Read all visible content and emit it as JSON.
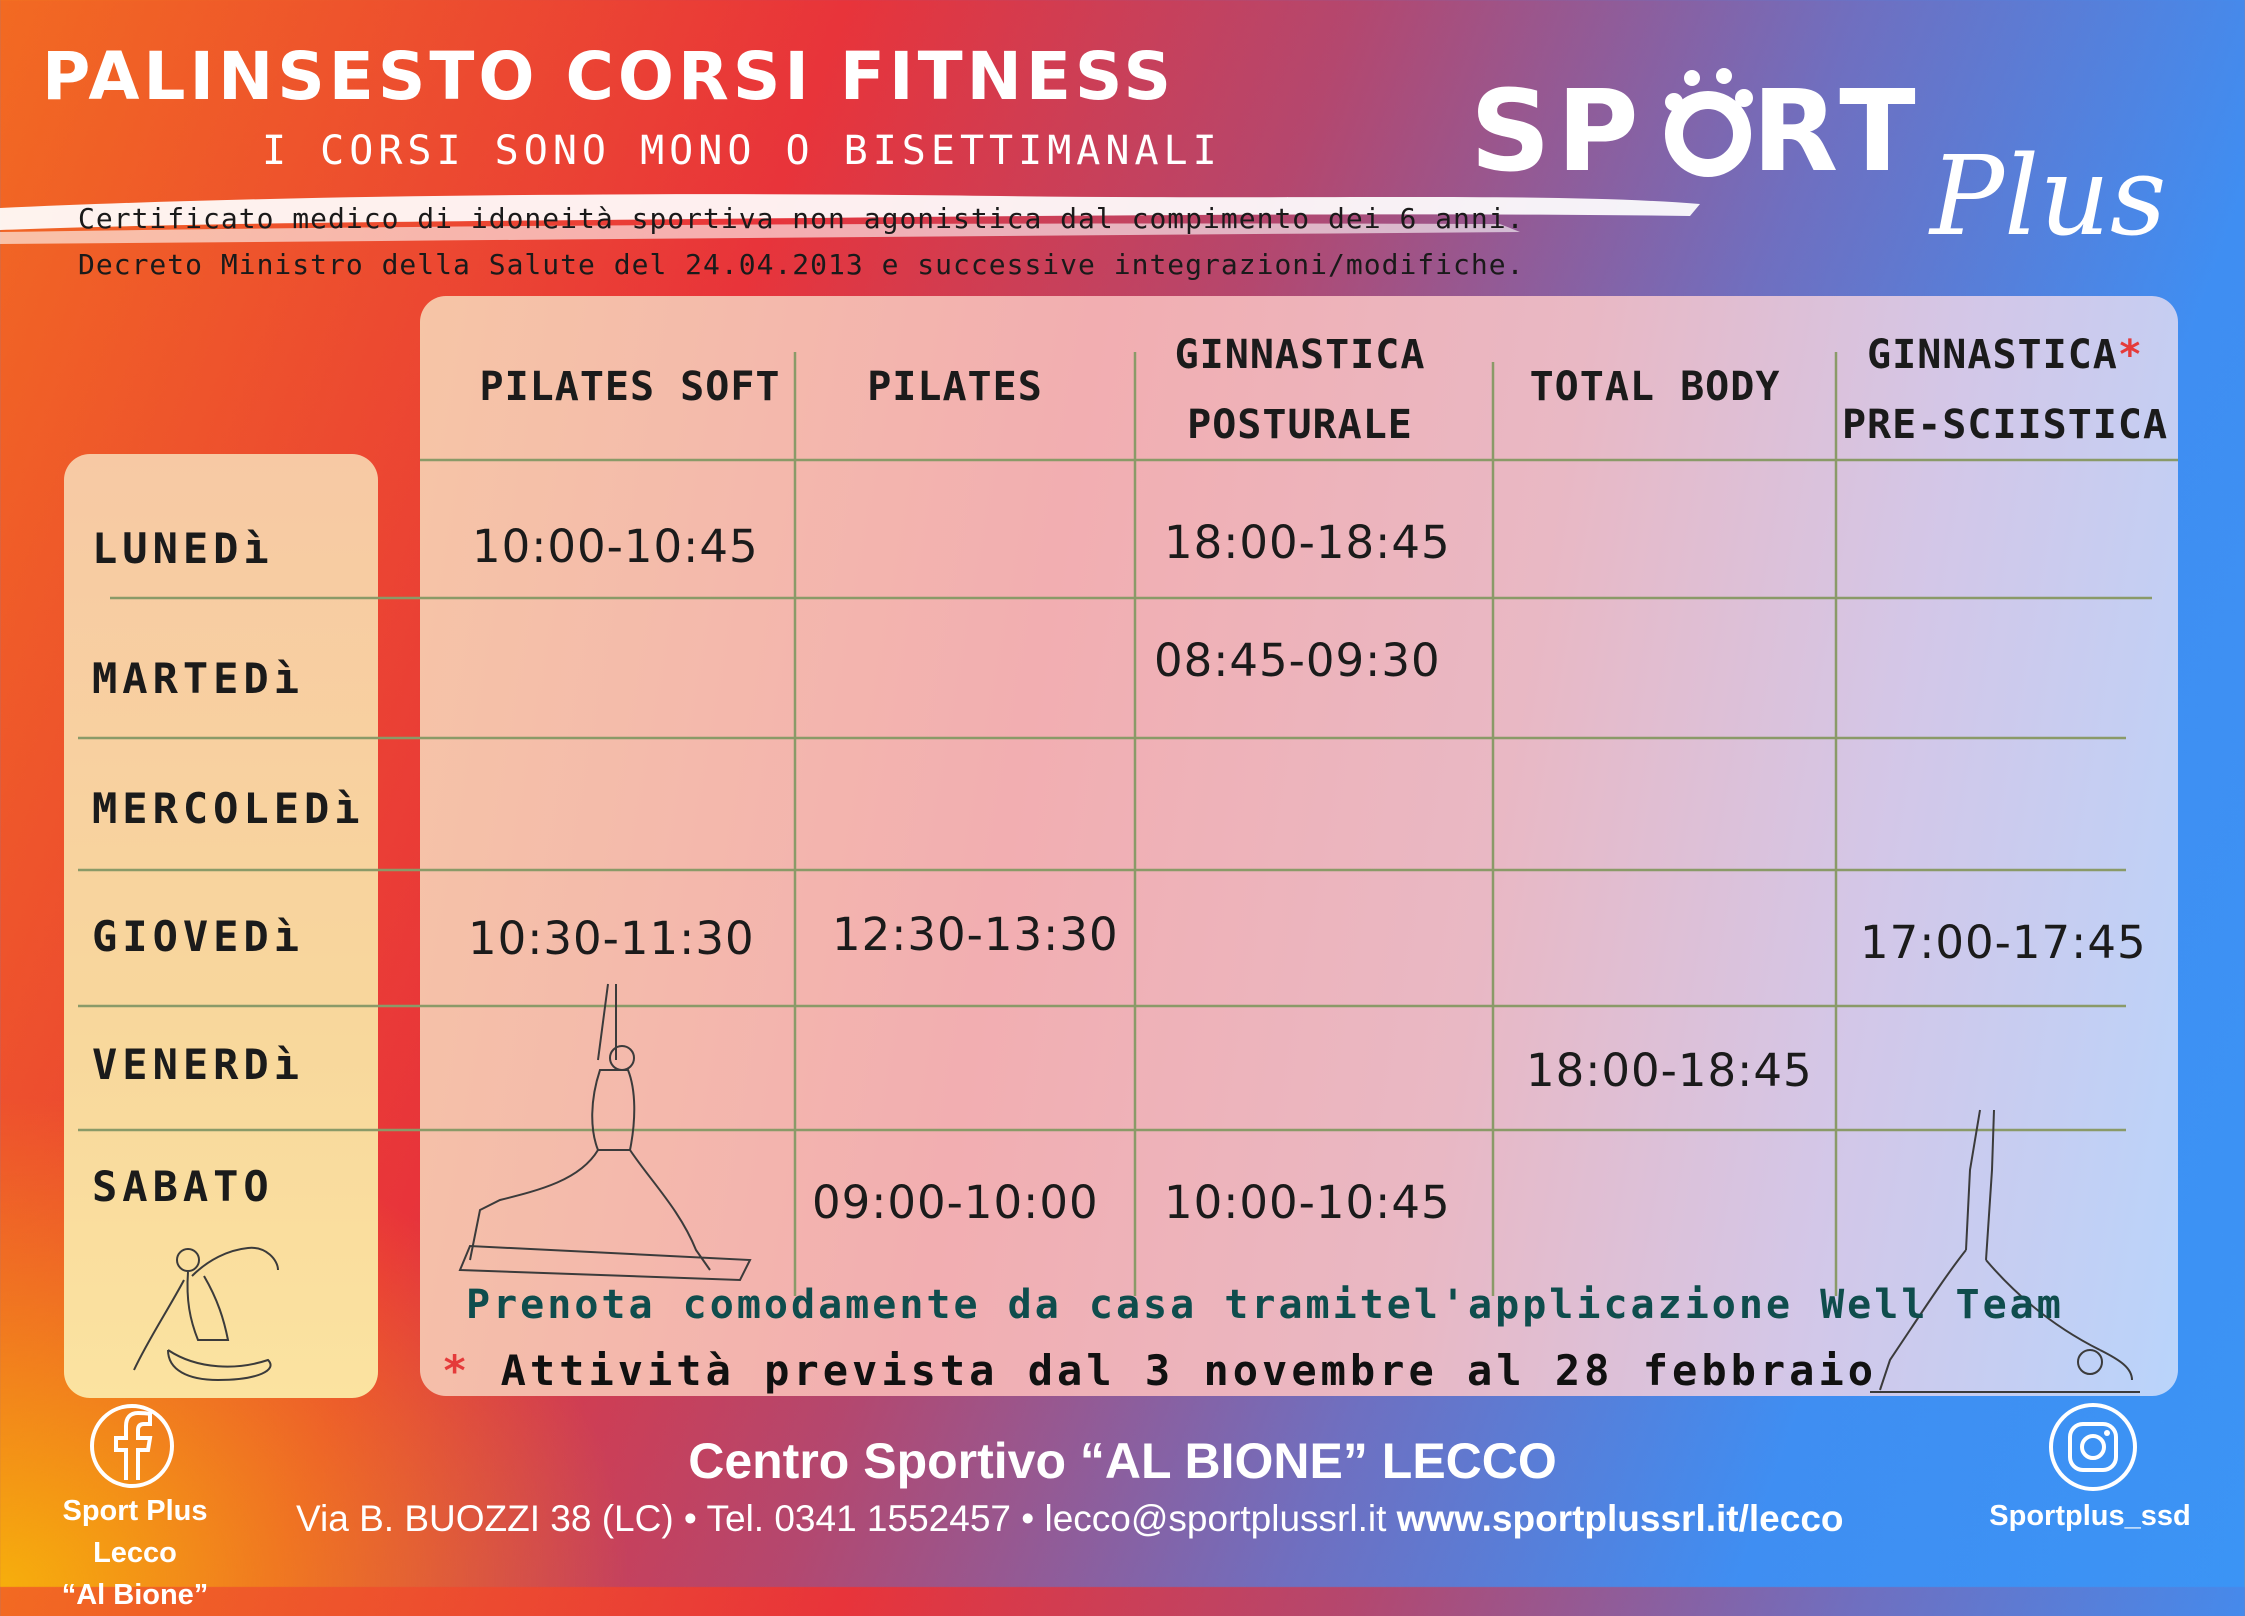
{
  "header": {
    "title": "PALINSESTO CORSI FITNESS",
    "subtitle": "I CORSI SONO MONO O BISETTIMANALI",
    "info_line1": "Certificato medico di idoneità sportiva non agonistica dal compimento dei 6 anni.",
    "info_line2": "Decreto Ministro della Salute del 24.04.2013 e successive integrazioni/modifiche."
  },
  "logo": {
    "brand": "SPORT",
    "script": "Plus"
  },
  "schedule": {
    "columns": [
      {
        "line1": "PILATES SOFT",
        "line2": ""
      },
      {
        "line1": "PILATES",
        "line2": ""
      },
      {
        "line1": "GINNASTICA",
        "line2": "POSTURALE"
      },
      {
        "line1": "TOTAL BODY",
        "line2": ""
      },
      {
        "line1": "GINNASTICA",
        "line2": "PRE-SCIISTICA",
        "asterisk": "*"
      }
    ],
    "days": [
      "LUNEDì",
      "MARTEDì",
      "MERCOLEDì",
      "GIOVEDì",
      "VENERDì",
      "SABATO"
    ],
    "slots": {
      "lunedi_pilates_soft": "10:00-10:45",
      "lunedi_posturale": "18:00-18:45",
      "martedi_posturale": "08:45-09:30",
      "giovedi_pilates_soft": "10:30-11:30",
      "giovedi_pilates": "12:30-13:30",
      "giovedi_presciistica": "17:00-17:45",
      "venerdi_total_body": "18:00-18:45",
      "sabato_pilates": "09:00-10:00",
      "sabato_posturale": "10:00-10:45"
    }
  },
  "notes": {
    "prenota": "Prenota comodamente da casa tramitel'applicazione Well Team",
    "asterisk": "*",
    "attivita": "Attività prevista dal 3 novembre al 28 febbraio"
  },
  "footer": {
    "centro": "Centro Sportivo “AL BIONE” LECCO",
    "address": "Via B. BUOZZI 38 (LC) • Tel. 0341 1552457 • lecco@sportplussrl.it ",
    "website": "www.sportplussrl.it/lecco",
    "facebook_line1": "Sport Plus Lecco",
    "facebook_line2": "“Al Bione”",
    "instagram": "Sportplus_ssd"
  },
  "colors": {
    "asterisk": "#e53a3a",
    "prenota_text": "#0f4d4d"
  }
}
